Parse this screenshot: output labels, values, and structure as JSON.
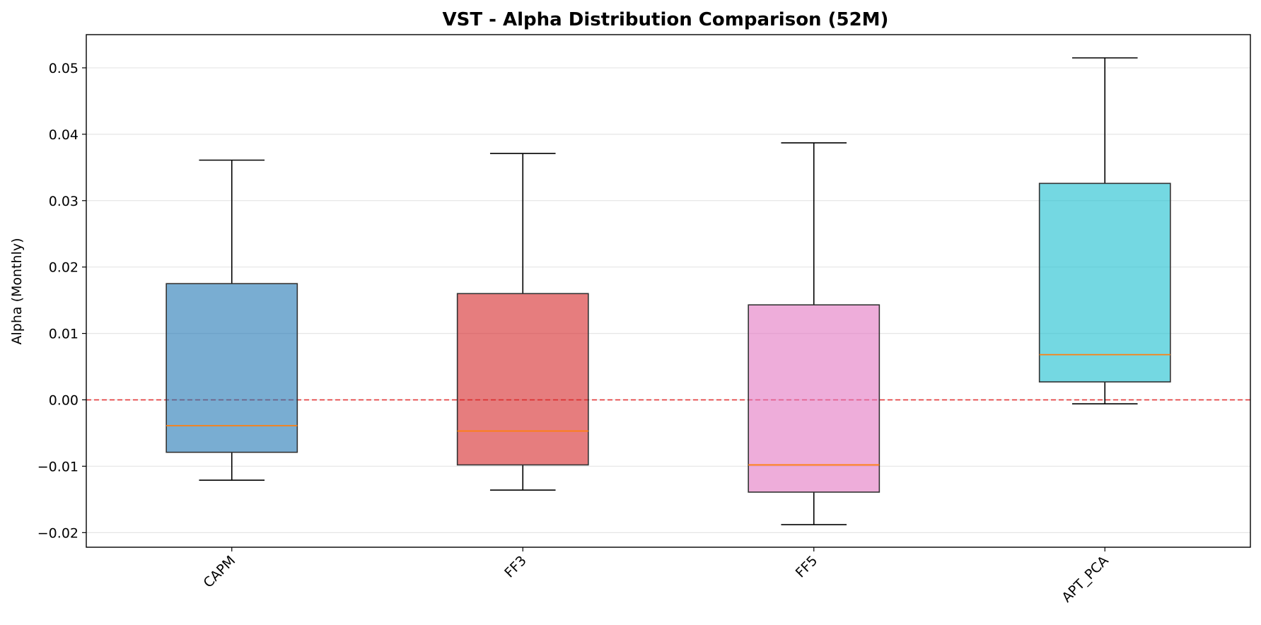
{
  "chart_data": {
    "type": "boxplot",
    "title": "VST - Alpha Distribution Comparison (52M)",
    "xlabel": "",
    "ylabel": "Alpha (Monthly)",
    "ylim": [
      -0.0222,
      0.055
    ],
    "yticks": [
      -0.02,
      -0.01,
      0.0,
      0.01,
      0.02,
      0.03,
      0.04,
      0.05
    ],
    "ytick_labels": [
      "−0.02",
      "−0.01",
      "0.00",
      "0.01",
      "0.02",
      "0.03",
      "0.04",
      "0.05"
    ],
    "grid": "horizontal",
    "reference_line": {
      "y": 0.0,
      "color": "#e41a1c",
      "style": "dashed"
    },
    "categories": [
      "CAPM",
      "FF3",
      "FF5",
      "APT_PCA"
    ],
    "boxes": [
      {
        "category": "CAPM",
        "whisker_low": -0.0121,
        "q1": -0.0079,
        "median": -0.0039,
        "q3": 0.0175,
        "whisker_high": 0.0361,
        "color": "#1f77b4"
      },
      {
        "category": "FF3",
        "whisker_low": -0.0136,
        "q1": -0.0098,
        "median": -0.0047,
        "q3": 0.016,
        "whisker_high": 0.0371,
        "color": "#d62728"
      },
      {
        "category": "FF5",
        "whisker_low": -0.0188,
        "q1": -0.0139,
        "median": -0.0098,
        "q3": 0.0143,
        "whisker_high": 0.0387,
        "color": "#e377c2"
      },
      {
        "category": "APT_PCA",
        "whisker_low": -0.0006,
        "q1": 0.0027,
        "median": 0.0068,
        "q3": 0.0326,
        "whisker_high": 0.0515,
        "color": "#17becf"
      }
    ],
    "median_color": "#ff7f0e"
  }
}
